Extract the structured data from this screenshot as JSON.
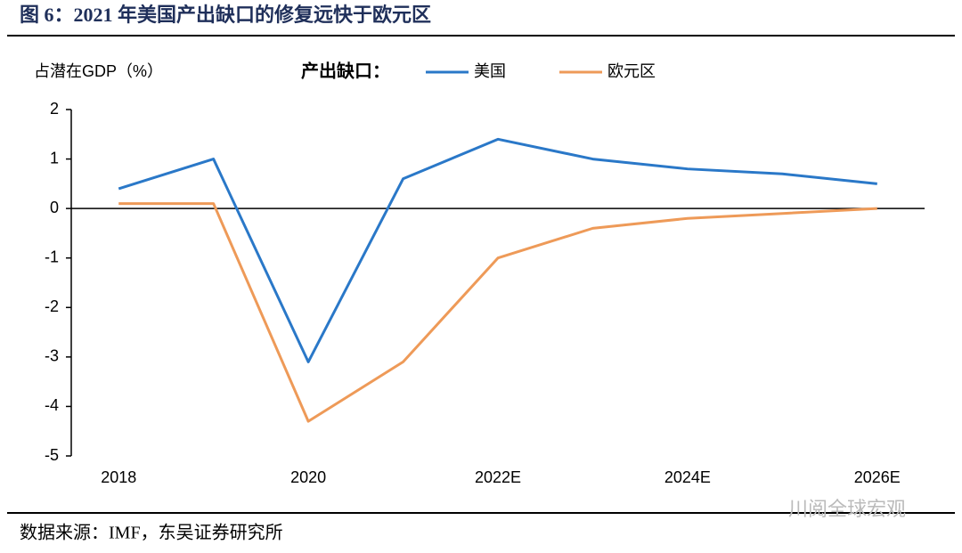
{
  "chart_data": {
    "type": "line",
    "title": "图 6：2021 年美国产出缺口的修复远快于欧元区",
    "y_label": "占潜在GDP（%）",
    "legend_title": "产出缺口：",
    "categories": [
      "2018",
      null,
      "2020",
      null,
      "2022E",
      null,
      "2024E",
      null,
      "2026E"
    ],
    "series": [
      {
        "name": "美国",
        "color": "#2a78c8",
        "values": [
          0.4,
          1.0,
          -3.1,
          0.6,
          1.4,
          1.0,
          0.8,
          0.7,
          0.5
        ]
      },
      {
        "name": "欧元区",
        "color": "#ee9a58",
        "values": [
          0.1,
          0.1,
          -4.3,
          -3.1,
          -1.0,
          -0.4,
          -0.2,
          -0.1,
          0.0
        ]
      }
    ],
    "ylim": [
      -5,
      2
    ],
    "yticks": [
      -5,
      -4,
      -3,
      -2,
      -1,
      0,
      1,
      2
    ],
    "grid": false
  },
  "source": "数据来源：IMF，东吴证券研究所",
  "watermark": "川阅全球宏观"
}
